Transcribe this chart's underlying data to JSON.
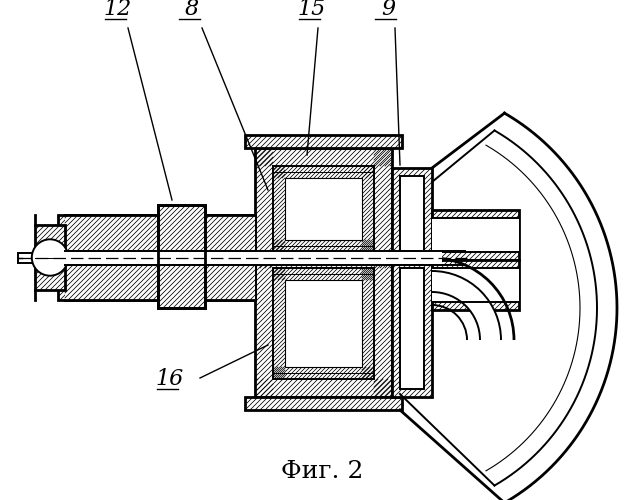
{
  "title": "Фиг. 2",
  "bg_color": "#ffffff",
  "line_color": "#000000",
  "title_fontsize": 18,
  "label_fontsize": 17
}
